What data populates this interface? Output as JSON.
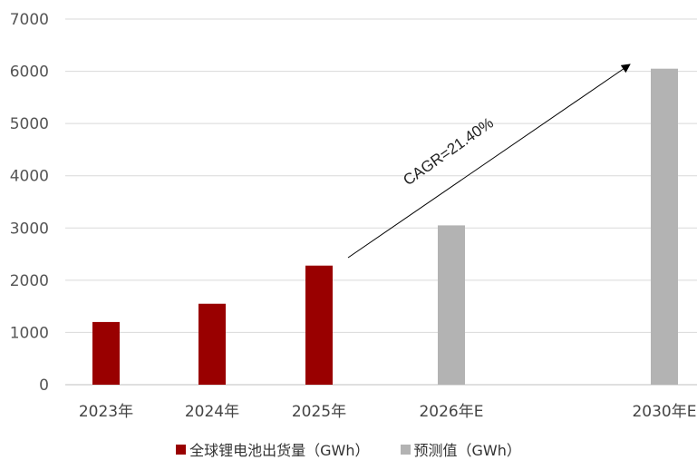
{
  "chart_data": {
    "type": "bar",
    "categories": [
      "2023年",
      "2024年",
      "2025年",
      "2026年E",
      "2030年E"
    ],
    "series": [
      {
        "name": "全球锂电池出货量（GWh）",
        "color": "#990000",
        "values": [
          1200,
          1550,
          2280,
          null,
          null
        ]
      },
      {
        "name": "预测值（GWh）",
        "color": "#b3b3b3",
        "values": [
          null,
          null,
          null,
          3050,
          6050
        ]
      }
    ],
    "ylim": [
      0,
      7000
    ],
    "yticks": [
      0,
      1000,
      2000,
      3000,
      4000,
      5000,
      6000,
      7000
    ],
    "grid": true,
    "legend_position": "bottom",
    "annotation": {
      "text": "CAGR=21.40%"
    },
    "title": "",
    "xlabel": "",
    "ylabel": ""
  }
}
